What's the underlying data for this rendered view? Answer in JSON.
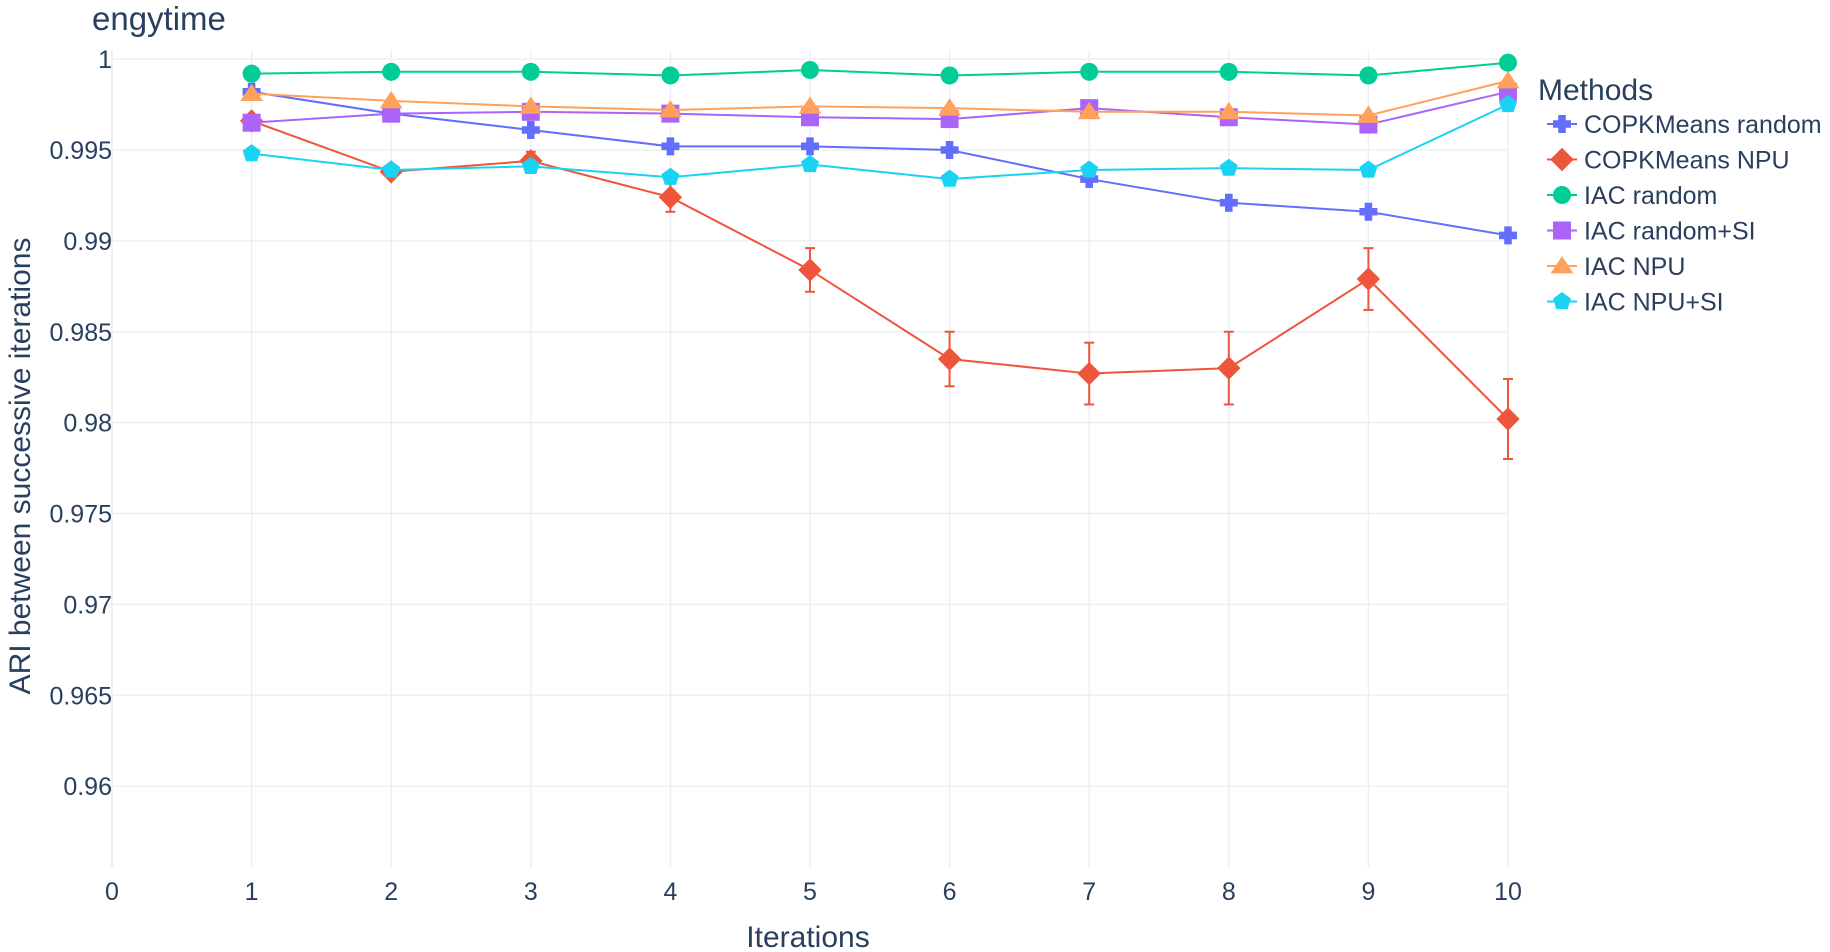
{
  "chart_data": {
    "type": "line",
    "title": "engytime",
    "xlabel": "Iterations",
    "ylabel": "ARI between successive iterations",
    "xlim": [
      0,
      10
    ],
    "ylim": [
      0.9555,
      1.0005
    ],
    "x_ticks": [
      0,
      1,
      2,
      3,
      4,
      5,
      6,
      7,
      8,
      9,
      10
    ],
    "y_ticks": [
      0.96,
      0.965,
      0.97,
      0.975,
      0.98,
      0.985,
      0.99,
      0.995,
      1
    ],
    "y_tick_labels": [
      "0.96",
      "0.965",
      "0.97",
      "0.975",
      "0.98",
      "0.985",
      "0.99",
      "0.995",
      "1"
    ],
    "grid": true,
    "legend": {
      "title": "Methods",
      "placement": "top-right"
    },
    "x": [
      1,
      2,
      3,
      4,
      5,
      6,
      7,
      8,
      9,
      10
    ],
    "series": [
      {
        "name": "COPKMeans random",
        "color": "#636efa",
        "marker": "cross",
        "values": [
          0.9982,
          0.997,
          0.9961,
          0.9952,
          0.9952,
          0.995,
          0.9934,
          0.9921,
          0.9916,
          0.9903
        ]
      },
      {
        "name": "COPKMeans NPU",
        "color": "#ef553b",
        "marker": "diamond",
        "values": [
          0.9966,
          0.9938,
          0.9944,
          0.9924,
          0.9884,
          0.9835,
          0.9827,
          0.983,
          0.9879,
          0.9802
        ],
        "error": [
          0.0003,
          0.0002,
          0.0005,
          0.0008,
          0.0012,
          0.0015,
          0.0017,
          0.002,
          0.0017,
          0.0022
        ]
      },
      {
        "name": "IAC random",
        "color": "#00cc96",
        "marker": "circle",
        "values": [
          0.9992,
          0.9993,
          0.9993,
          0.9991,
          0.9994,
          0.9991,
          0.9993,
          0.9993,
          0.9991,
          0.9998
        ]
      },
      {
        "name": "IAC random+SI",
        "color": "#ab63fa",
        "marker": "square",
        "values": [
          0.9965,
          0.997,
          0.9971,
          0.997,
          0.9968,
          0.9967,
          0.9973,
          0.9968,
          0.9964,
          0.9982
        ]
      },
      {
        "name": "IAC NPU",
        "color": "#ffa15a",
        "marker": "triangle-up",
        "values": [
          0.9981,
          0.9977,
          0.9974,
          0.9972,
          0.9974,
          0.9973,
          0.9971,
          0.9971,
          0.9969,
          0.9988
        ]
      },
      {
        "name": "IAC NPU+SI",
        "color": "#19d3f3",
        "marker": "pentagon",
        "values": [
          0.9948,
          0.9939,
          0.9941,
          0.9935,
          0.9942,
          0.9934,
          0.9939,
          0.994,
          0.9939,
          0.9975
        ]
      }
    ]
  }
}
